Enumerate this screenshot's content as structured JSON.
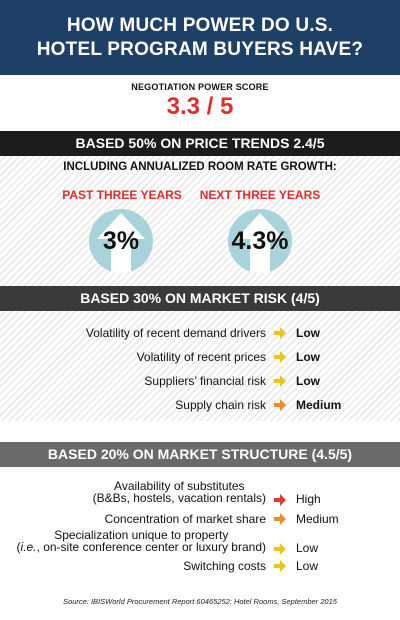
{
  "title": {
    "line1": "HOW MUCH POWER DO U.S.",
    "line2": "HOTEL PROGRAM BUYERS HAVE?"
  },
  "score": {
    "label": "NEGOTIATION POWER SCORE",
    "value": "3.3 / 5"
  },
  "section1": {
    "heading": "BASED 50% ON PRICE TRENDS 2.4/5",
    "subheading": "INCLUDING ANNUALIZED ROOM RATE GROWTH:",
    "periods": [
      {
        "label": "PAST THREE YEARS",
        "value": "3%"
      },
      {
        "label": "NEXT THREE YEARS",
        "value": "4.3%"
      }
    ]
  },
  "section2": {
    "heading": "BASED 30% ON MARKET RISK (4/5)",
    "items": [
      {
        "label": "Volatility of recent demand drivers",
        "value": "Low",
        "arrow_color": "#e8c61c"
      },
      {
        "label": "Volatility of recent prices",
        "value": "Low",
        "arrow_color": "#e8c61c"
      },
      {
        "label": "Suppliers’ financial risk",
        "value": "Low",
        "arrow_color": "#e8c61c"
      },
      {
        "label": "Supply chain risk",
        "value": "Medium",
        "arrow_color": "#f08a24"
      }
    ]
  },
  "section3": {
    "heading": "BASED 20% ON MARKET STRUCTURE (4.5/5)",
    "items": [
      {
        "label_line1": "Availability of substitutes",
        "label_line2": "(B&Bs, hostels, vacation rentals)",
        "value": "High",
        "arrow_color": "#e23a2a"
      },
      {
        "label": "Concentration of market share",
        "value": "Medium",
        "arrow_color": "#f08a24"
      },
      {
        "label_line1": "Specialization unique to property",
        "label_line2_italic": "i.e.",
        "label_line2_rest": ", on-site conference center or luxury brand)",
        "value": "Low",
        "arrow_color": "#e8c61c"
      },
      {
        "label": "Switching costs",
        "value": "Low",
        "arrow_color": "#e8c61c"
      }
    ]
  },
  "source": "Source: IBISWorld Procurement Report 60465252: Hotel Rooms, September 2015",
  "colors": {
    "title_bg": "#1e3f66",
    "accent_red": "#e12d2d",
    "circle_fill": "#a9d3db",
    "arrow_fill": "#ffffff"
  }
}
